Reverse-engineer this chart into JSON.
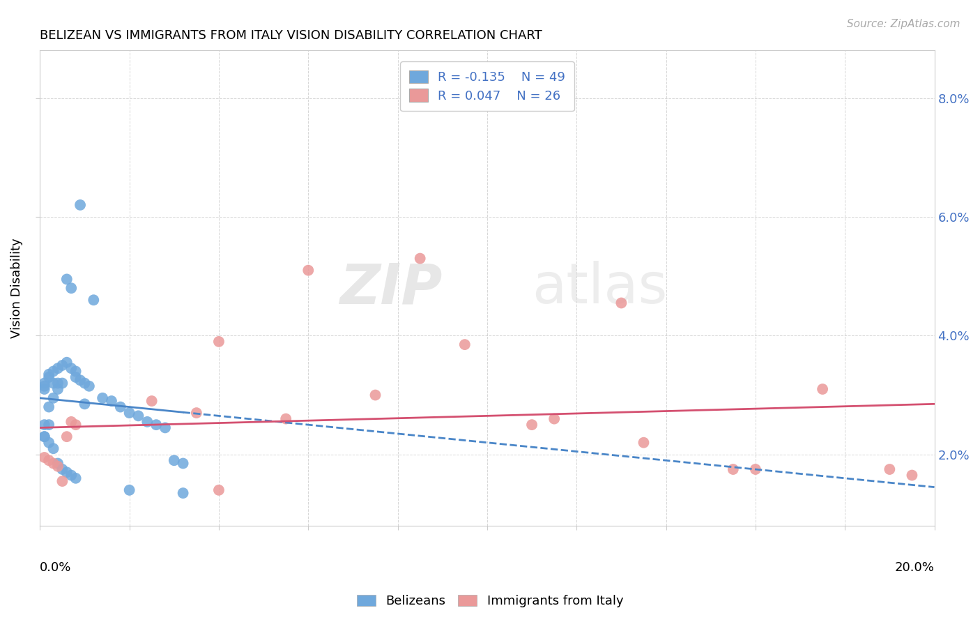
{
  "title": "BELIZEAN VS IMMIGRANTS FROM ITALY VISION DISABILITY CORRELATION CHART",
  "source": "Source: ZipAtlas.com",
  "ylabel": "Vision Disability",
  "ytick_values": [
    0.02,
    0.04,
    0.06,
    0.08
  ],
  "xlim": [
    0.0,
    0.2
  ],
  "ylim": [
    0.008,
    0.088
  ],
  "blue_color": "#6fa8dc",
  "pink_color": "#ea9999",
  "watermark_zip": "ZIP",
  "watermark_atlas": "atlas",
  "blue_line_y_start": 0.0295,
  "blue_line_y_end": 0.0145,
  "pink_line_y_start": 0.0245,
  "pink_line_y_end": 0.0285,
  "belizean_x": [
    0.001,
    0.001,
    0.001,
    0.001,
    0.001,
    0.002,
    0.002,
    0.002,
    0.002,
    0.003,
    0.003,
    0.003,
    0.004,
    0.004,
    0.004,
    0.005,
    0.005,
    0.006,
    0.006,
    0.007,
    0.007,
    0.008,
    0.008,
    0.009,
    0.01,
    0.01,
    0.011,
    0.012,
    0.014,
    0.016,
    0.018,
    0.02,
    0.022,
    0.024,
    0.026,
    0.028,
    0.03,
    0.032,
    0.001,
    0.002,
    0.003,
    0.004,
    0.005,
    0.006,
    0.007,
    0.008,
    0.02,
    0.032,
    0.009
  ],
  "belizean_y": [
    0.032,
    0.0315,
    0.031,
    0.025,
    0.023,
    0.0335,
    0.033,
    0.028,
    0.025,
    0.034,
    0.032,
    0.0295,
    0.0345,
    0.032,
    0.031,
    0.035,
    0.032,
    0.0495,
    0.0355,
    0.048,
    0.0345,
    0.034,
    0.033,
    0.0325,
    0.032,
    0.0285,
    0.0315,
    0.046,
    0.0295,
    0.029,
    0.028,
    0.027,
    0.0265,
    0.0255,
    0.025,
    0.0245,
    0.019,
    0.0185,
    0.023,
    0.022,
    0.021,
    0.0185,
    0.0175,
    0.017,
    0.0165,
    0.016,
    0.014,
    0.0135,
    0.062
  ],
  "italy_x": [
    0.001,
    0.002,
    0.003,
    0.004,
    0.005,
    0.006,
    0.007,
    0.008,
    0.025,
    0.04,
    0.06,
    0.085,
    0.11,
    0.13,
    0.16,
    0.19,
    0.035,
    0.055,
    0.075,
    0.095,
    0.115,
    0.135,
    0.155,
    0.175,
    0.195,
    0.04
  ],
  "italy_y": [
    0.0195,
    0.019,
    0.0185,
    0.018,
    0.0155,
    0.023,
    0.0255,
    0.025,
    0.029,
    0.039,
    0.051,
    0.053,
    0.025,
    0.0455,
    0.0175,
    0.0175,
    0.027,
    0.026,
    0.03,
    0.0385,
    0.026,
    0.022,
    0.0175,
    0.031,
    0.0165,
    0.014
  ]
}
